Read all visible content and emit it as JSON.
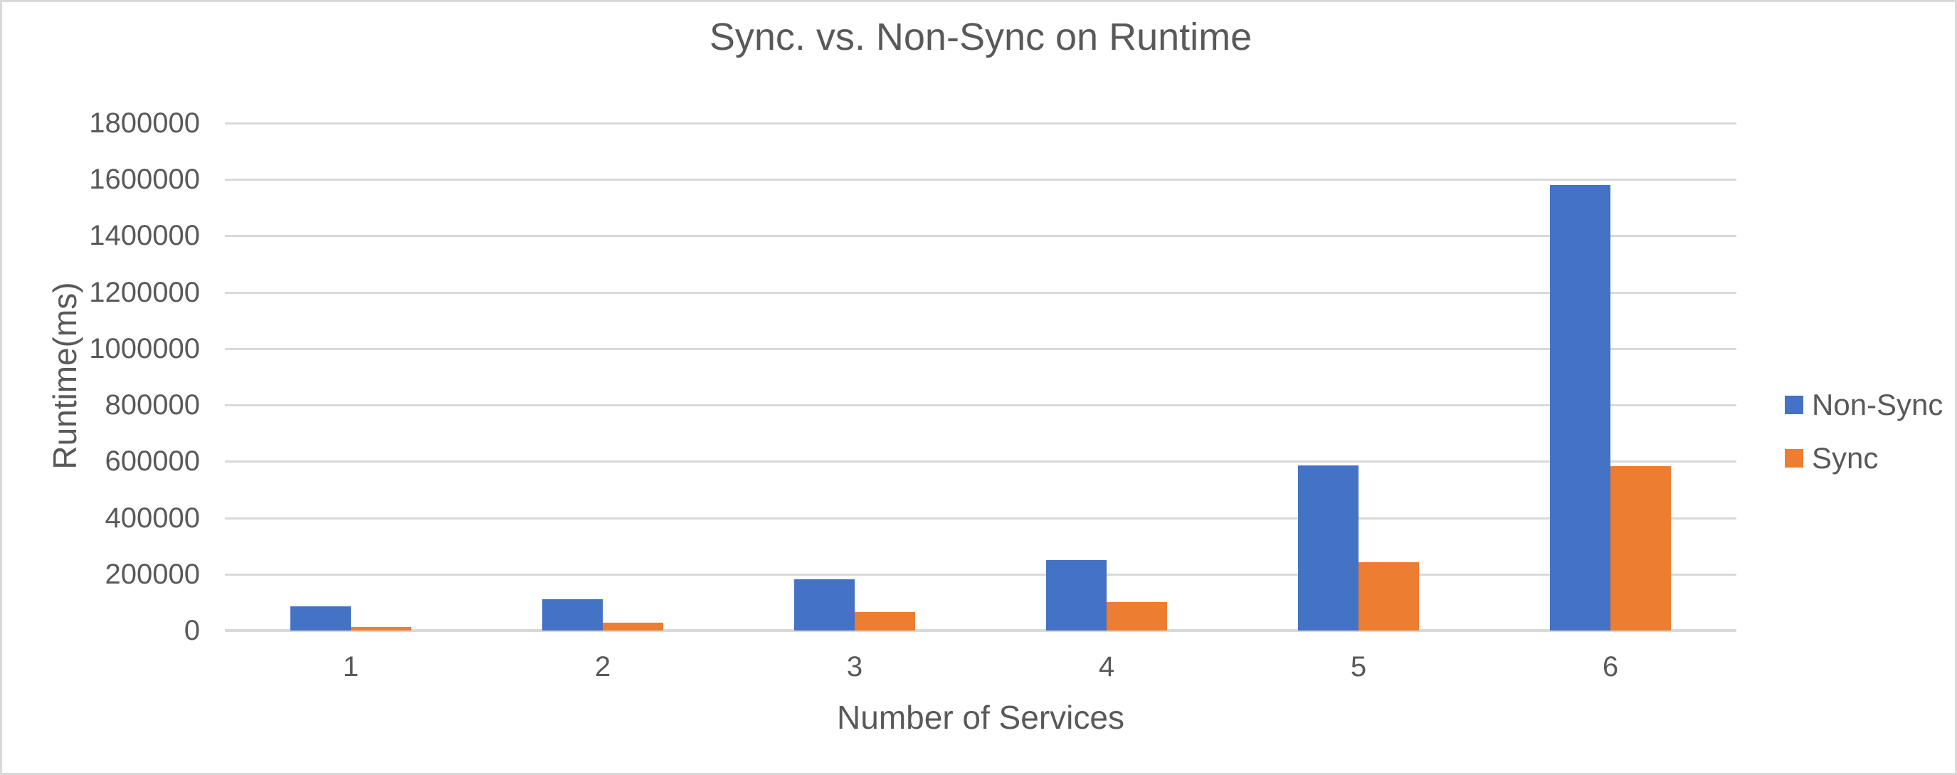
{
  "chart_data": {
    "type": "bar",
    "title": "Sync. vs. Non-Sync on Runtime",
    "xlabel": "Number of Services",
    "ylabel": "Runtime(ms)",
    "categories": [
      "1",
      "2",
      "3",
      "4",
      "5",
      "6"
    ],
    "series": [
      {
        "name": "Non-Sync",
        "color": "#4472C4",
        "values": [
          85000,
          112000,
          183000,
          250000,
          585000,
          1580000
        ]
      },
      {
        "name": "Sync",
        "color": "#ED7D31",
        "values": [
          12000,
          27000,
          65000,
          100000,
          243000,
          582000
        ]
      }
    ],
    "ylim": [
      0,
      1800000
    ],
    "ytick_step": 200000,
    "ytick_labels": [
      "0",
      "200000",
      "400000",
      "600000",
      "800000",
      "1000000",
      "1200000",
      "1400000",
      "1600000",
      "1800000"
    ],
    "grid": true,
    "legend_position": "right",
    "colors": {
      "text": "#595959",
      "gridline": "#D9D9D9",
      "background": "#FFFFFF",
      "frame_border": "#D9D9D9"
    }
  }
}
